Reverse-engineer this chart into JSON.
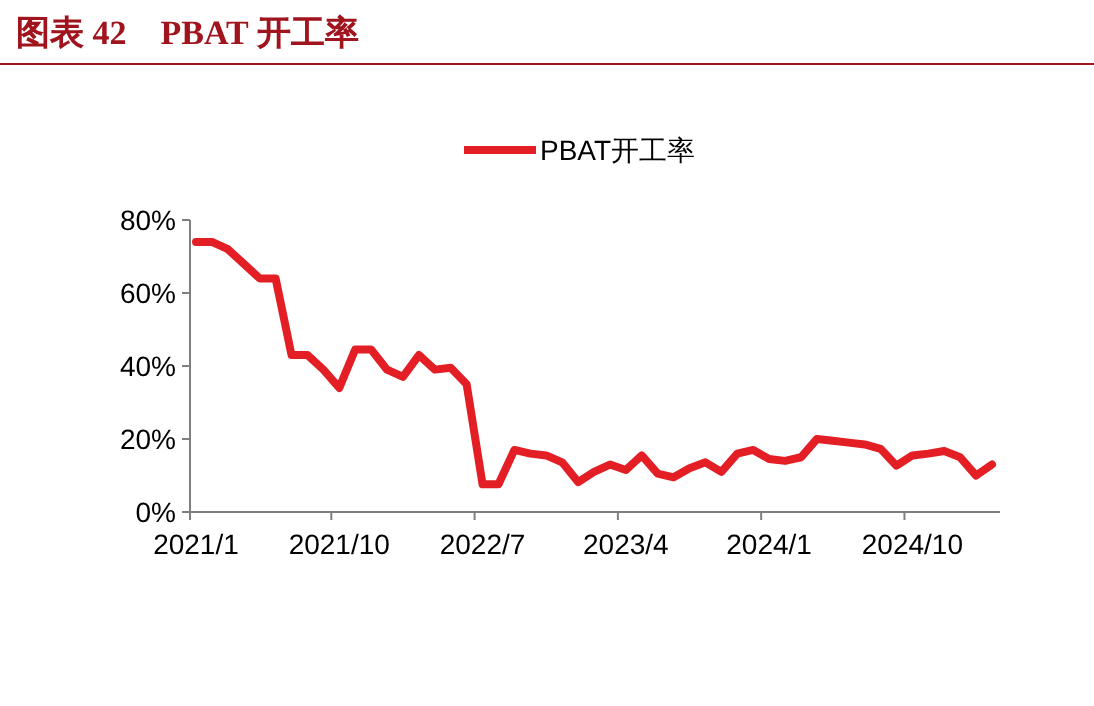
{
  "chart_data": {
    "type": "line",
    "title": "图表 42　PBAT 开工率",
    "categories": [
      "2021/1",
      null,
      null,
      null,
      null,
      null,
      null,
      null,
      null,
      "2021/10",
      null,
      null,
      null,
      null,
      null,
      null,
      null,
      null,
      "2022/7",
      null,
      null,
      null,
      null,
      null,
      null,
      null,
      null,
      "2023/4",
      null,
      null,
      null,
      null,
      null,
      null,
      null,
      null,
      "2024/1",
      null,
      null,
      null,
      null,
      null,
      null,
      null,
      null,
      "2024/10",
      null,
      null,
      null,
      null,
      null
    ],
    "series": [
      {
        "name": "PBAT开工率",
        "color": "#e31e24",
        "values": [
          74,
          74,
          72,
          68,
          64,
          64,
          43,
          43,
          39,
          34,
          44.5,
          44.5,
          39,
          37,
          43,
          39,
          39.5,
          35,
          7.6,
          7.6,
          17,
          16,
          15.5,
          13.6,
          8.2,
          11,
          13,
          11.5,
          15.5,
          10.5,
          9.5,
          12,
          13.6,
          11,
          16,
          17,
          14.5,
          14,
          15,
          20,
          19.5,
          19,
          18.5,
          17.3,
          12.7,
          15.5,
          16,
          16.7,
          15,
          10,
          13
        ]
      }
    ],
    "ylim": [
      0,
      80
    ],
    "yticks": [
      {
        "value": 0,
        "label": "0%"
      },
      {
        "value": 20,
        "label": "20%"
      },
      {
        "value": 40,
        "label": "40%"
      },
      {
        "value": 60,
        "label": "60%"
      },
      {
        "value": 80,
        "label": "80%"
      }
    ],
    "legend": "top",
    "grid": false,
    "marker": "none",
    "line_style": "solid"
  }
}
